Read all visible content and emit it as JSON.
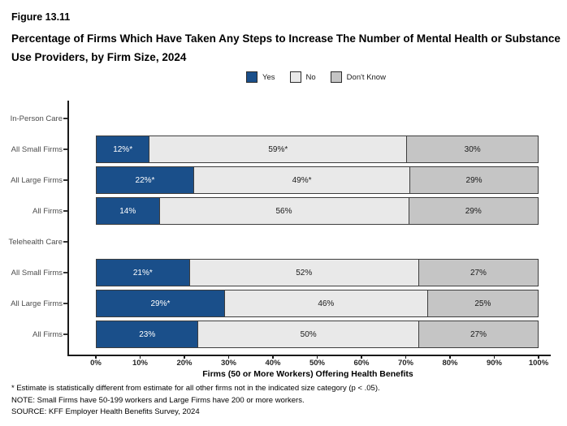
{
  "figure_label": "Figure 13.11",
  "title": "Percentage of Firms Which Have Taken Any Steps to Increase The Number of Mental Health or Substance Use Providers, by Firm Size, 2024",
  "legend": {
    "items": [
      {
        "label": "Yes",
        "color": "#1a4f8a"
      },
      {
        "label": "No",
        "color": "#e9e9e9"
      },
      {
        "label": "Don't Know",
        "color": "#c5c5c5"
      }
    ]
  },
  "chart_data": {
    "type": "bar",
    "orientation": "horizontal",
    "stacked": true,
    "title": "Percentage of Firms Which Have Taken Any Steps to Increase The Number of Mental Health or Substance Use Providers, by Firm Size, 2024",
    "xlabel": "Firms (50 or More Workers) Offering Health Benefits",
    "ylabel": "",
    "xlim": [
      0,
      100
    ],
    "x_ticks": [
      "0%",
      "10%",
      "20%",
      "30%",
      "40%",
      "50%",
      "60%",
      "70%",
      "80%",
      "90%",
      "100%"
    ],
    "grid": false,
    "legend_position": "top-center",
    "series_names": [
      "Yes",
      "No",
      "Don't Know"
    ],
    "series_colors": [
      "#1a4f8a",
      "#e9e9e9",
      "#c5c5c5"
    ],
    "value_label_colors": [
      "#ffffff",
      "#1a1a1a",
      "#1a1a1a"
    ],
    "groups": [
      {
        "header": "In-Person Care",
        "rows": [
          {
            "category": "All Small Firms",
            "values": [
              12,
              59,
              30
            ],
            "labels": [
              "12%*",
              "59%*",
              "30%"
            ]
          },
          {
            "category": "All Large Firms",
            "values": [
              22,
              49,
              29
            ],
            "labels": [
              "22%*",
              "49%*",
              "29%"
            ]
          },
          {
            "category": "All Firms",
            "values": [
              14,
              56,
              29
            ],
            "labels": [
              "14%",
              "56%",
              "29%"
            ]
          }
        ]
      },
      {
        "header": "Telehealth Care",
        "rows": [
          {
            "category": "All Small Firms",
            "values": [
              21,
              52,
              27
            ],
            "labels": [
              "21%*",
              "52%",
              "27%"
            ]
          },
          {
            "category": "All Large Firms",
            "values": [
              29,
              46,
              25
            ],
            "labels": [
              "29%*",
              "46%",
              "25%"
            ]
          },
          {
            "category": "All Firms",
            "values": [
              23,
              50,
              27
            ],
            "labels": [
              "23%",
              "50%",
              "27%"
            ]
          }
        ]
      }
    ]
  },
  "footnotes": [
    "* Estimate is statistically different from estimate for all other firms not in the indicated size category (p < .05).",
    "NOTE: Small Firms have 50-199 workers and Large Firms have 200 or more workers.",
    "SOURCE: KFF Employer Health Benefits Survey, 2024"
  ]
}
